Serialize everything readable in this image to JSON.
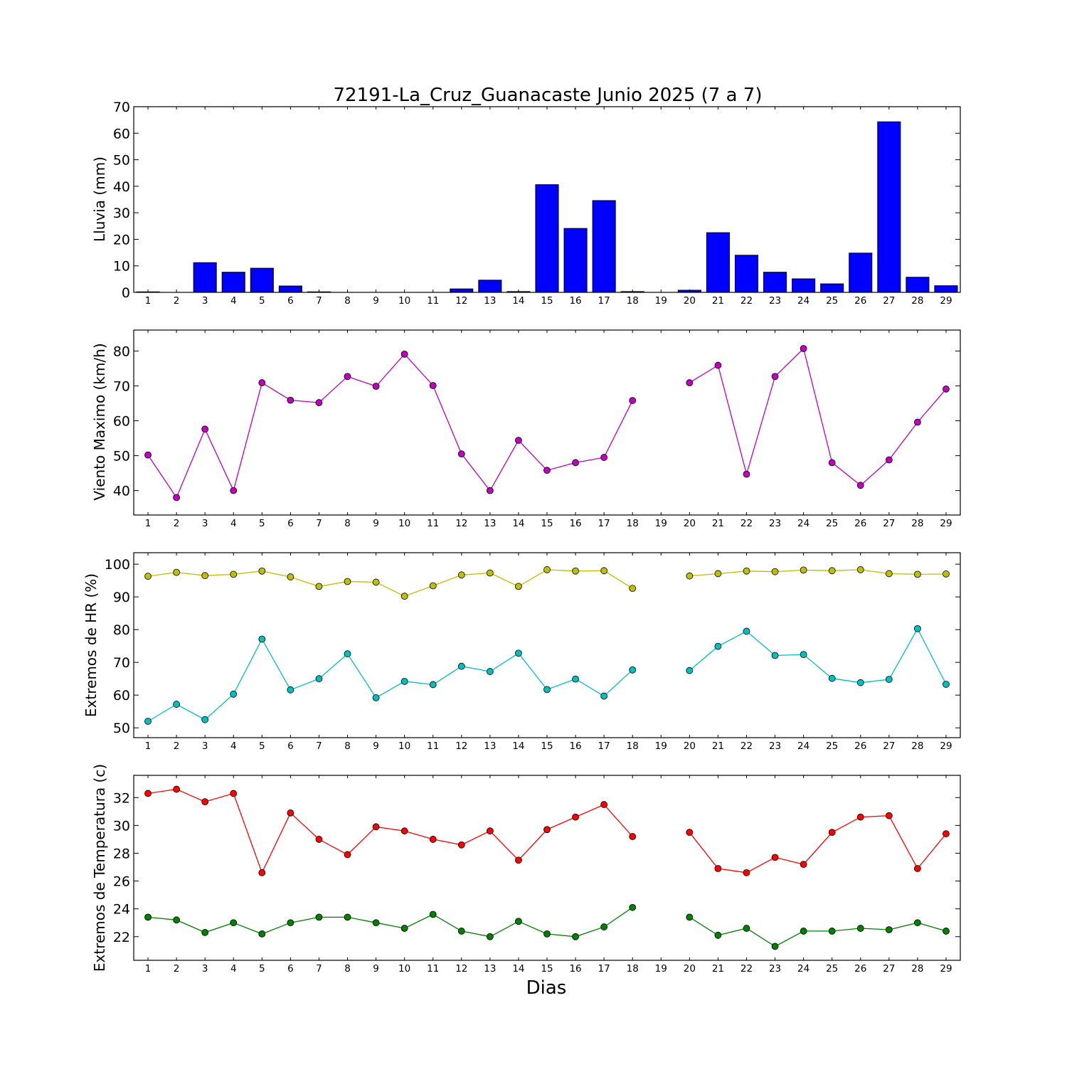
{
  "chart_data": [
    {
      "type": "bar",
      "title": "72191-La_Cruz_Guanacaste Junio 2025  (7 a 7)",
      "ylabel": "Lluvia (mm)",
      "ylim": [
        0,
        70
      ],
      "yticks": [
        0,
        10,
        20,
        30,
        40,
        50,
        60,
        70
      ],
      "categories": [
        1,
        2,
        3,
        4,
        5,
        6,
        7,
        8,
        9,
        10,
        11,
        12,
        13,
        14,
        15,
        16,
        17,
        18,
        19,
        20,
        21,
        22,
        23,
        24,
        25,
        26,
        27,
        28,
        29
      ],
      "values": [
        0.2,
        0,
        11.2,
        7.6,
        9.1,
        2.4,
        0.2,
        0,
        0,
        0,
        0,
        1.3,
        4.6,
        0.3,
        40.6,
        24.1,
        34.6,
        0.3,
        0,
        0.8,
        22.5,
        14,
        7.6,
        5.1,
        3.2,
        14.8,
        64.3,
        5.7,
        2.5
      ],
      "colors": {
        "bar": "#0000ff"
      }
    },
    {
      "type": "line",
      "ylabel": "Viento Maximo (km/h)",
      "ylim": [
        33,
        86
      ],
      "yticks": [
        40,
        50,
        60,
        70,
        80
      ],
      "x": [
        1,
        2,
        3,
        4,
        5,
        6,
        7,
        8,
        9,
        10,
        11,
        12,
        13,
        14,
        15,
        16,
        17,
        18,
        19,
        20,
        21,
        22,
        23,
        24,
        25,
        26,
        27,
        28,
        29
      ],
      "series": [
        {
          "color": "#bf00bf",
          "values": [
            50.2,
            38.0,
            57.6,
            40.0,
            70.9,
            65.9,
            65.2,
            72.7,
            69.9,
            79.1,
            70.1,
            50.5,
            40.0,
            54.4,
            45.8,
            48.0,
            49.5,
            65.8,
            null,
            70.9,
            75.9,
            44.7,
            72.7,
            80.7,
            48.0,
            41.5,
            48.8,
            59.6,
            69.1
          ]
        }
      ]
    },
    {
      "type": "line",
      "ylabel": "Extremos de HR (%)",
      "ylim": [
        47,
        103.5
      ],
      "yticks": [
        50,
        60,
        70,
        80,
        90,
        100
      ],
      "x": [
        1,
        2,
        3,
        4,
        5,
        6,
        7,
        8,
        9,
        10,
        11,
        12,
        13,
        14,
        15,
        16,
        17,
        18,
        19,
        20,
        21,
        22,
        23,
        24,
        25,
        26,
        27,
        28,
        29
      ],
      "series": [
        {
          "color": "#bfbf00",
          "values": [
            96.3,
            97.5,
            96.5,
            96.9,
            97.9,
            96.1,
            93.2,
            94.7,
            94.5,
            90.2,
            93.4,
            96.7,
            97.3,
            93.2,
            98.3,
            97.9,
            98.0,
            92.6,
            null,
            96.4,
            97.1,
            97.9,
            97.7,
            98.2,
            98.0,
            98.3,
            97.1,
            96.9,
            97.0
          ]
        },
        {
          "color": "#00bfbf",
          "values": [
            52.0,
            57.2,
            52.5,
            60.3,
            77.1,
            61.6,
            65.0,
            72.6,
            59.2,
            64.2,
            63.2,
            68.8,
            67.2,
            72.8,
            61.7,
            64.9,
            59.7,
            67.7,
            null,
            67.5,
            74.9,
            79.5,
            72.1,
            72.4,
            65.1,
            63.8,
            64.8,
            80.3,
            63.3
          ]
        }
      ]
    },
    {
      "type": "line",
      "ylabel": "Extremos de Temperatura (c)",
      "xlabel": "Dias",
      "ylim": [
        20.3,
        33.6
      ],
      "yticks": [
        22,
        24,
        26,
        28,
        30,
        32
      ],
      "x": [
        1,
        2,
        3,
        4,
        5,
        6,
        7,
        8,
        9,
        10,
        11,
        12,
        13,
        14,
        15,
        16,
        17,
        18,
        19,
        20,
        21,
        22,
        23,
        24,
        25,
        26,
        27,
        28,
        29
      ],
      "series": [
        {
          "color": "#ff0000",
          "values": [
            32.3,
            32.6,
            31.7,
            32.3,
            26.6,
            30.9,
            29.0,
            27.9,
            29.9,
            29.6,
            29.0,
            28.6,
            29.6,
            27.5,
            29.7,
            30.6,
            31.5,
            29.2,
            null,
            29.5,
            26.9,
            26.6,
            27.7,
            27.2,
            29.5,
            30.6,
            30.7,
            26.9,
            29.4
          ]
        },
        {
          "color": "#008000",
          "values": [
            23.4,
            23.2,
            22.3,
            23.0,
            22.2,
            23.0,
            23.4,
            23.4,
            23.0,
            22.6,
            23.6,
            22.4,
            22.0,
            23.1,
            22.2,
            22.0,
            22.7,
            24.1,
            null,
            23.4,
            22.1,
            22.6,
            21.3,
            22.4,
            22.4,
            22.6,
            22.5,
            23.0,
            22.4
          ]
        }
      ]
    }
  ]
}
